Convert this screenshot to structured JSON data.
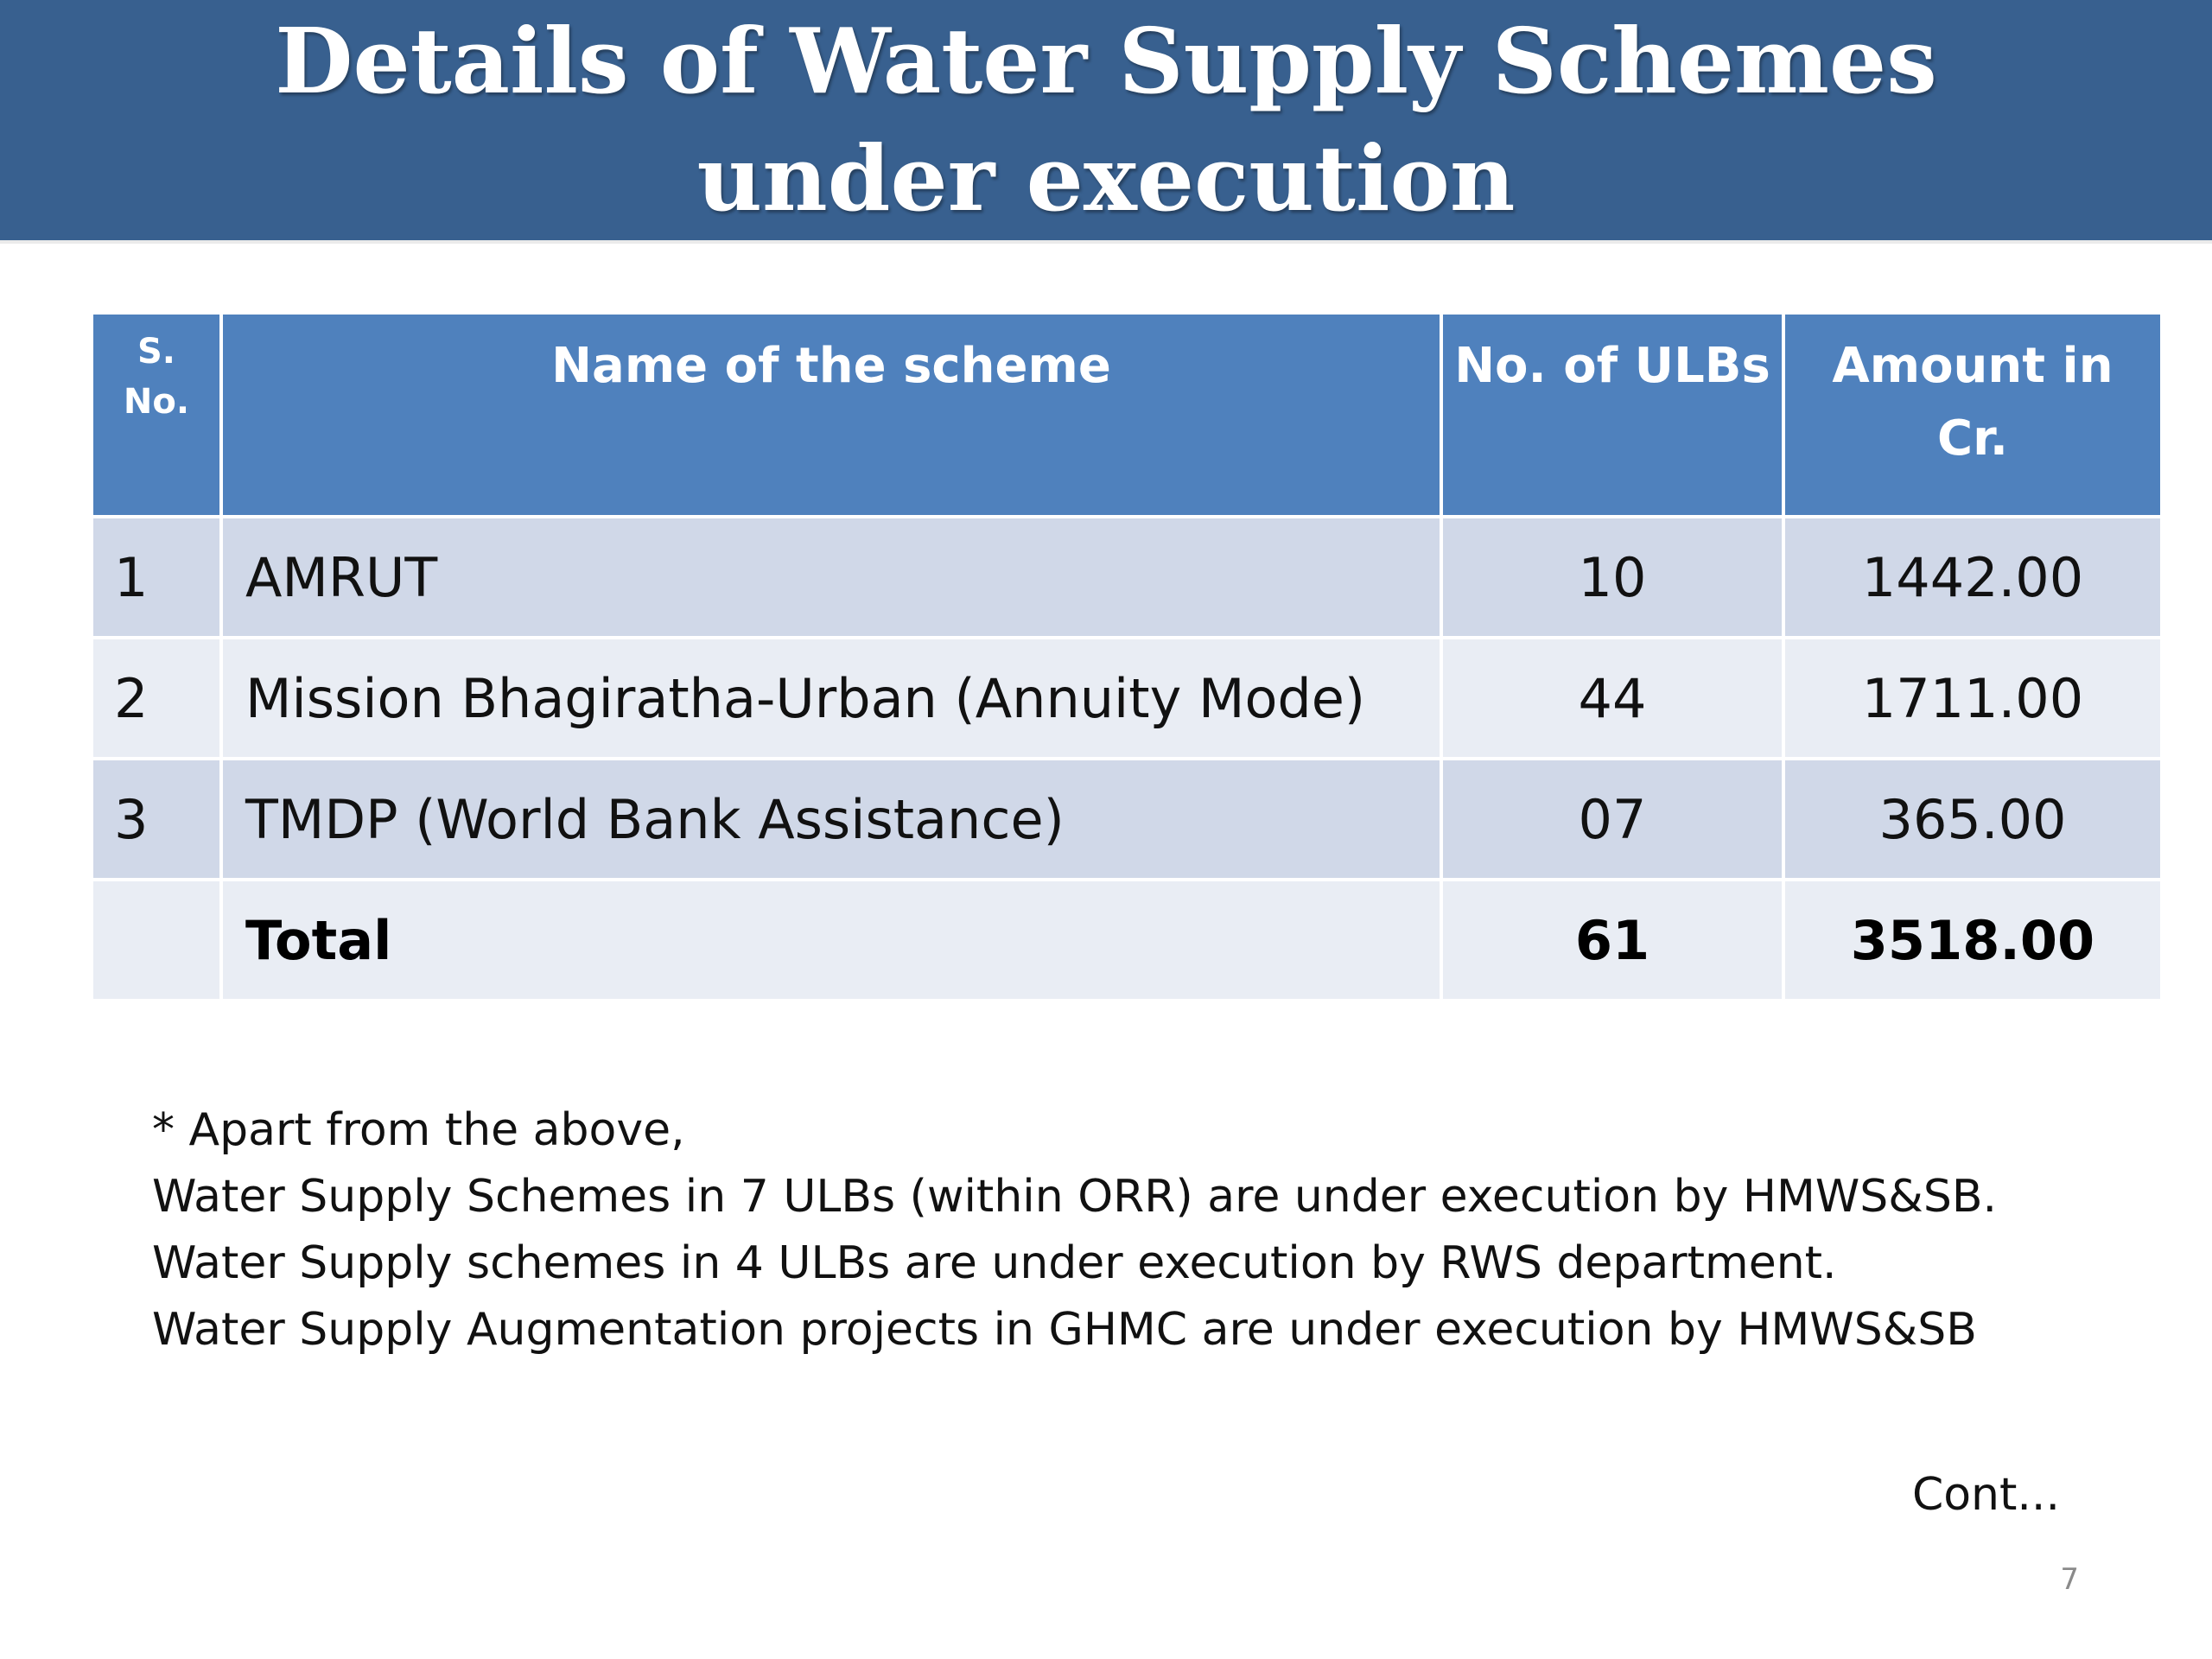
{
  "slide": {
    "title": "Details of Water Supply Schemes under execution",
    "page_number": "7",
    "continuation": "Cont..."
  },
  "table": {
    "headers": {
      "sno": "S. No.",
      "name": "Name of  the scheme",
      "ulbs": "No. of ULBs",
      "amount": "Amount in Cr."
    },
    "rows": [
      {
        "sno": "1",
        "name": "AMRUT",
        "ulbs": "10",
        "amount": "1442.00"
      },
      {
        "sno": "2",
        "name": "Mission Bhagiratha-Urban (Annuity Mode)",
        "ulbs": "44",
        "amount": "1711.00"
      },
      {
        "sno": "3",
        "name": "TMDP (World Bank Assistance)",
        "ulbs": "07",
        "amount": "365.00"
      }
    ],
    "total": {
      "label": "Total",
      "ulbs": "61",
      "amount": "3518.00"
    }
  },
  "notes": [
    "* Apart from the above,",
    "Water Supply Schemes in 7 ULBs (within ORR) are under execution by HMWS&SB.",
    "Water Supply schemes in 4 ULBs are under execution by RWS department.",
    "Water Supply Augmentation projects in GHMC are under execution by HMWS&SB"
  ],
  "colors": {
    "title_bar": "#38608f",
    "header": "#4f81bd",
    "row_odd": "#d0d8e8",
    "row_even": "#e9edf4"
  }
}
